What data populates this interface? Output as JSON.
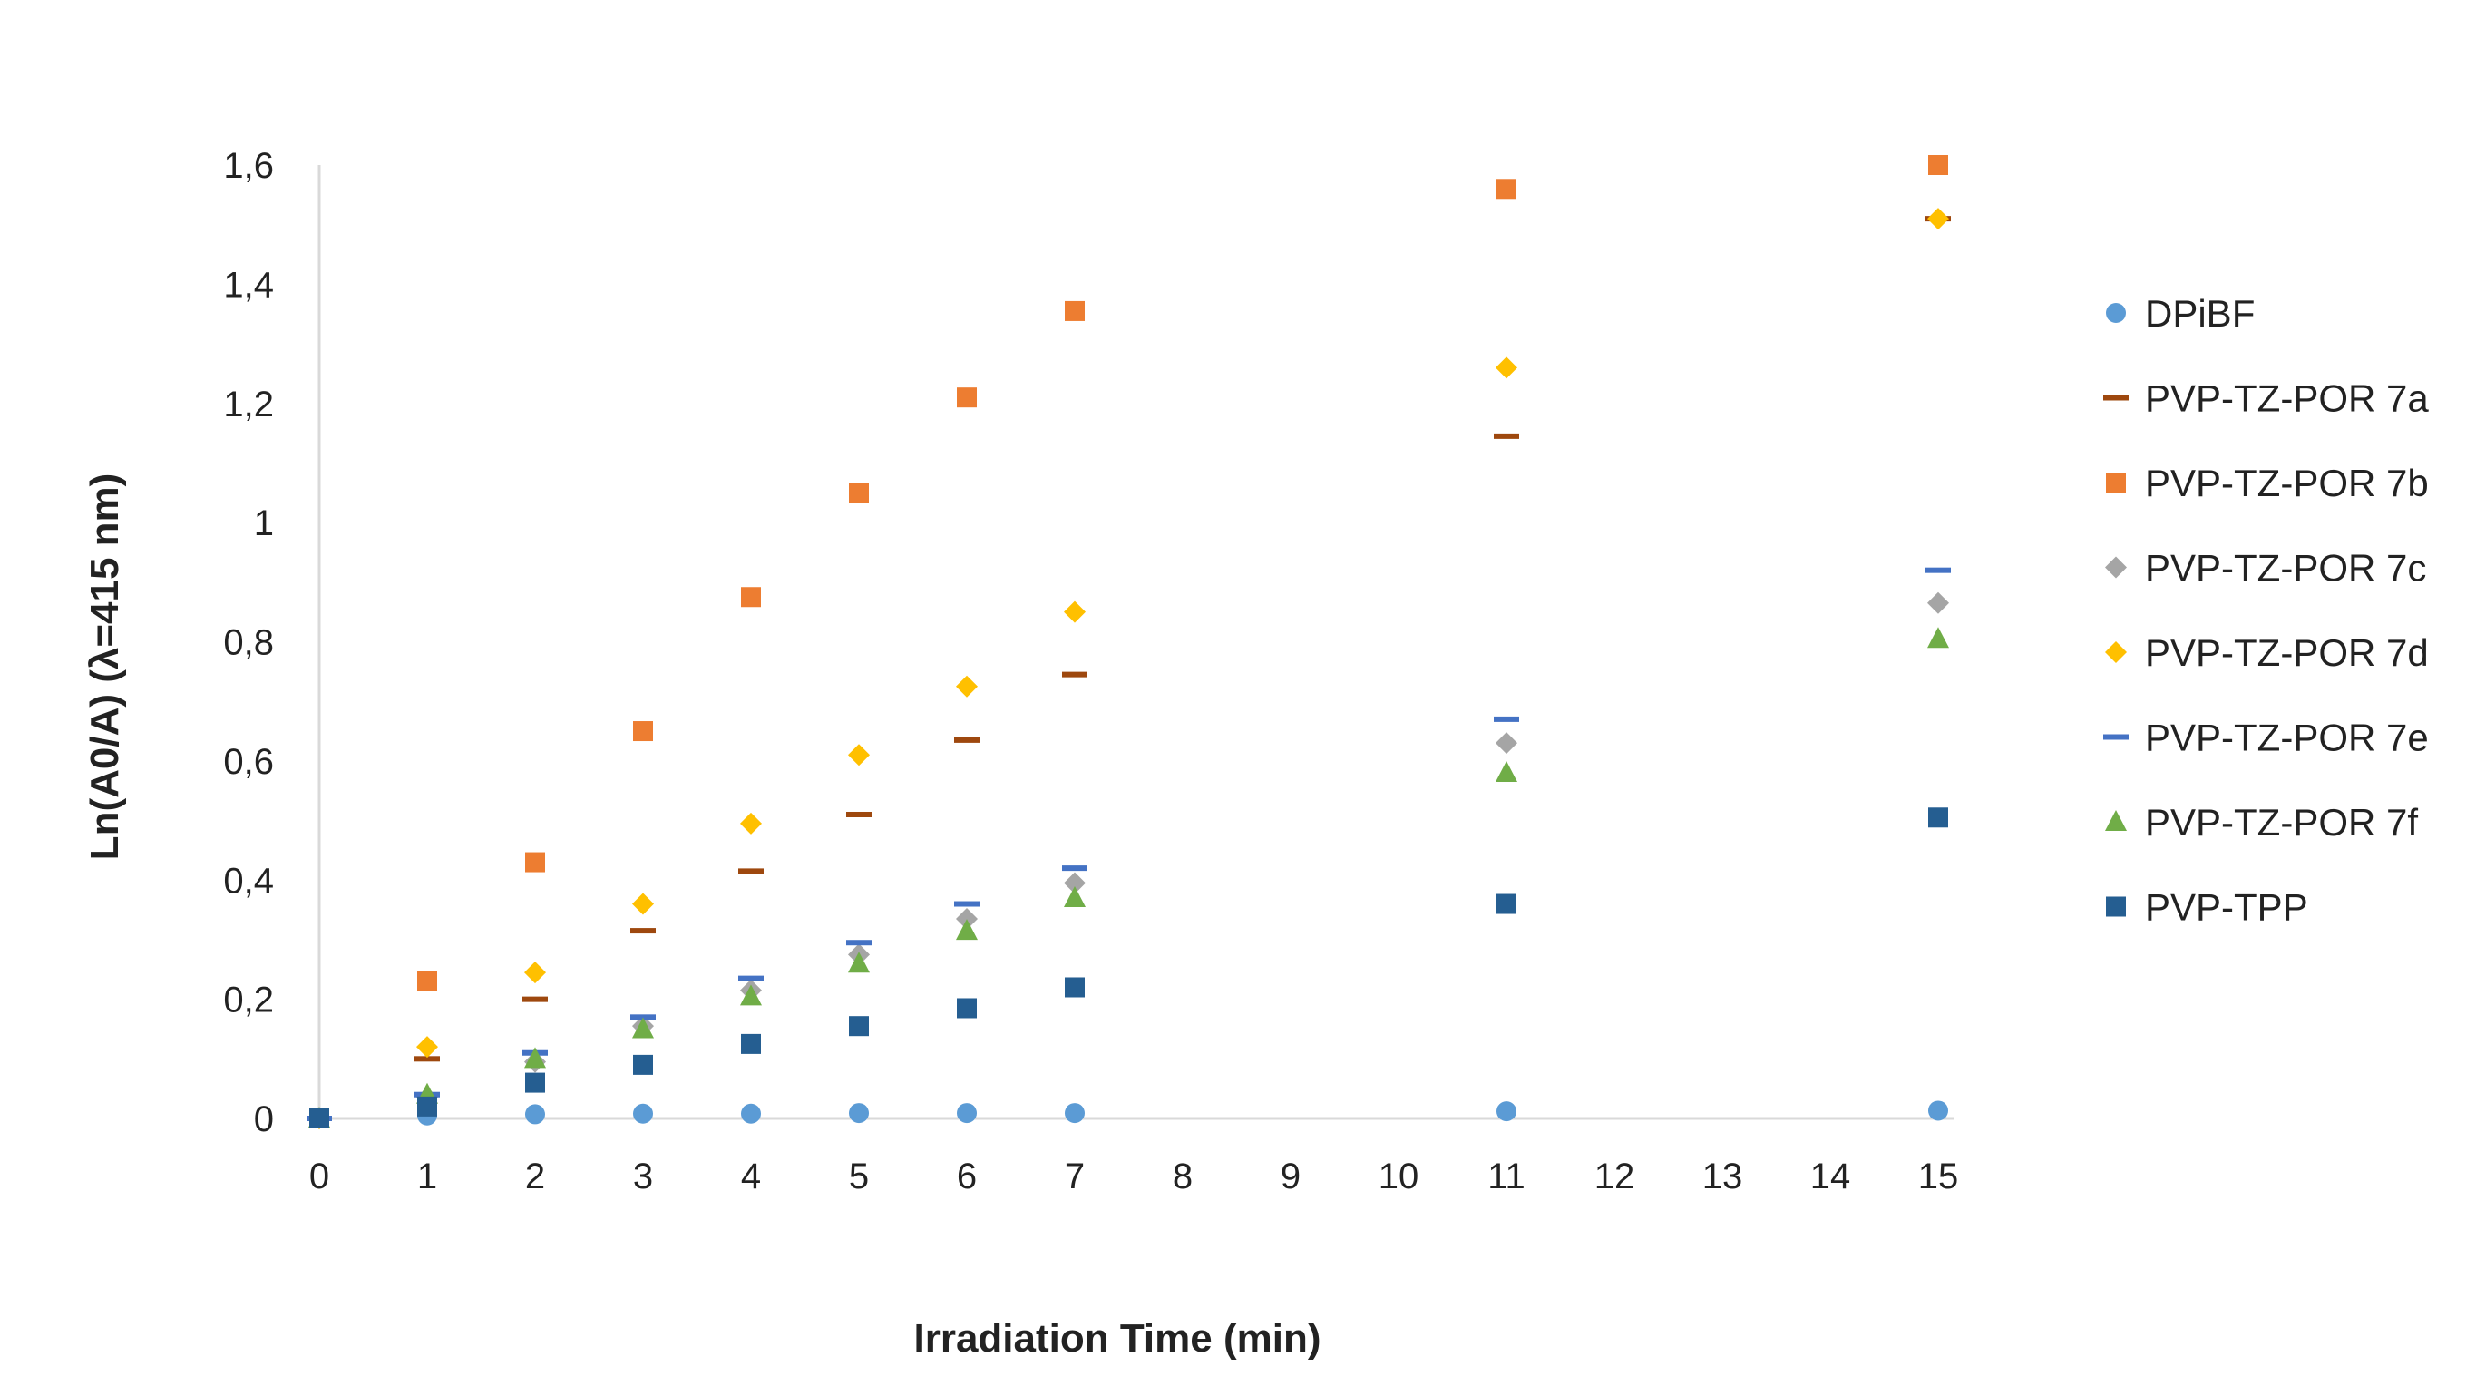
{
  "chart_data": {
    "type": "scatter",
    "title": "",
    "xlabel": "Irradiation Time (min)",
    "ylabel": "Ln(A0/A) (λ=415 nm)",
    "x_categories": [
      "0",
      "1",
      "2",
      "3",
      "4",
      "5",
      "6",
      "7",
      "8",
      "9",
      "10",
      "11",
      "12",
      "13",
      "14",
      "15"
    ],
    "x": [
      0,
      1,
      2,
      3,
      4,
      5,
      6,
      7,
      11,
      15
    ],
    "ylim": [
      0,
      1.6
    ],
    "y_ticks": [
      0,
      0.2,
      0.4,
      0.6,
      0.8,
      1.0,
      1.2,
      1.4,
      1.6
    ],
    "y_tick_labels": [
      "0",
      "0,2",
      "0,4",
      "0,6",
      "0,8",
      "1",
      "1,2",
      "1,4",
      "1,6"
    ],
    "grid": false,
    "legend_position": "right",
    "series": [
      {
        "name": "DPiBF",
        "marker": "circle",
        "color": "#5B9BD5",
        "values": [
          0,
          0.005,
          0.007,
          0.008,
          0.008,
          0.009,
          0.009,
          0.009,
          0.012,
          0.013
        ]
      },
      {
        "name": "PVP-TZ-POR 7a",
        "marker": "dash",
        "color": "#9E480E",
        "values": [
          0,
          0.1,
          0.2,
          0.315,
          0.415,
          0.51,
          0.635,
          0.745,
          1.145,
          1.51
        ]
      },
      {
        "name": "PVP-TZ-POR 7b",
        "marker": "square",
        "color": "#ED7D31",
        "values": [
          0,
          0.23,
          0.43,
          0.65,
          0.875,
          1.05,
          1.21,
          1.355,
          1.56,
          1.6
        ]
      },
      {
        "name": "PVP-TZ-POR 7c",
        "marker": "diamond",
        "color": "#A5A5A5",
        "values": [
          0,
          0.035,
          0.095,
          0.155,
          0.215,
          0.275,
          0.335,
          0.395,
          0.63,
          0.865
        ]
      },
      {
        "name": "PVP-TZ-POR 7d",
        "marker": "diamond",
        "color": "#FFC000",
        "values": [
          0,
          0.12,
          0.245,
          0.36,
          0.495,
          0.61,
          0.725,
          0.85,
          1.26,
          1.51
        ]
      },
      {
        "name": "PVP-TZ-POR 7e",
        "marker": "dash",
        "color": "#4472C4",
        "values": [
          0,
          0.04,
          0.11,
          0.17,
          0.235,
          0.295,
          0.36,
          0.42,
          0.67,
          0.92
        ]
      },
      {
        "name": "PVP-TZ-POR 7f",
        "marker": "triangle",
        "color": "#70AD47",
        "values": [
          0,
          0.04,
          0.1,
          0.15,
          0.205,
          0.26,
          0.315,
          0.37,
          0.58,
          0.805
        ]
      },
      {
        "name": "PVP-TPP",
        "marker": "square",
        "color": "#255E91",
        "values": [
          0,
          0.02,
          0.06,
          0.09,
          0.125,
          0.155,
          0.185,
          0.22,
          0.36,
          0.505
        ]
      }
    ]
  }
}
